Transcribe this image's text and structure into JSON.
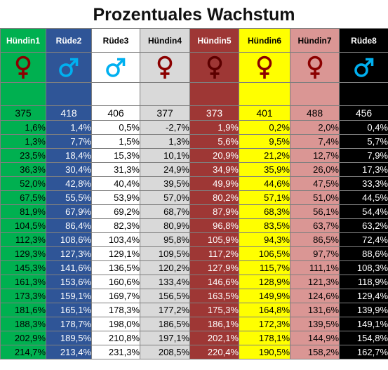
{
  "title": "Prozentuales Wachstum",
  "columns": [
    {
      "name": "Hündin1",
      "symbol": "female-symbol",
      "count": "375",
      "bg": "#00b050",
      "fg": "#000000",
      "sym": "#8b0000",
      "hfg": "#ffffff",
      "values": [
        "1,6%",
        "1,3%",
        "23,5%",
        "36,3%",
        "52,0%",
        "67,5%",
        "81,9%",
        "104,5%",
        "112,3%",
        "129,3%",
        "145,3%",
        "161,3%",
        "173,3%",
        "181,6%",
        "188,3%",
        "202,9%",
        "214,7%"
      ]
    },
    {
      "name": "Rüde2",
      "symbol": "male-symbol",
      "count": "418",
      "bg": "#2f5597",
      "fg": "#ffffff",
      "sym": "#00b0f0",
      "hfg": "#ffffff",
      "values": [
        "1,4%",
        "7,7%",
        "18,4%",
        "30,4%",
        "42,8%",
        "55,5%",
        "67,9%",
        "86,4%",
        "108,6%",
        "127,3%",
        "141,6%",
        "153,6%",
        "159,1%",
        "165,1%",
        "178,7%",
        "189,5%",
        "213,4%"
      ]
    },
    {
      "name": "Rüde3",
      "symbol": "male-symbol",
      "count": "406",
      "bg": "#ffffff",
      "fg": "#000000",
      "sym": "#00b0f0",
      "hfg": "#000000",
      "values": [
        "0,5%",
        "1,5%",
        "15,3%",
        "31,3%",
        "40,4%",
        "53,9%",
        "69,2%",
        "82,3%",
        "103,4%",
        "129,1%",
        "136,5%",
        "160,6%",
        "169,7%",
        "178,3%",
        "198,0%",
        "210,8%",
        "231,3%"
      ]
    },
    {
      "name": "Hündin4",
      "symbol": "female-symbol",
      "count": "377",
      "bg": "#d9d9d9",
      "fg": "#000000",
      "sym": "#8b0000",
      "hfg": "#000000",
      "values": [
        "-2,7%",
        "1,3%",
        "10,1%",
        "24,9%",
        "39,5%",
        "57,0%",
        "68,7%",
        "80,9%",
        "95,8%",
        "109,5%",
        "120,2%",
        "133,4%",
        "156,5%",
        "177,2%",
        "186,5%",
        "197,1%",
        "208,5%"
      ]
    },
    {
      "name": "Hündin5",
      "symbol": "female-symbol",
      "count": "373",
      "bg": "#9e3735",
      "fg": "#ffffff",
      "sym": "#5c0000",
      "hfg": "#ffffff",
      "values": [
        "1,9%",
        "5,6%",
        "20,9%",
        "34,9%",
        "49,9%",
        "80,2%",
        "87,9%",
        "96,8%",
        "105,9%",
        "117,2%",
        "127,9%",
        "146,6%",
        "163,5%",
        "175,3%",
        "186,1%",
        "202,1%",
        "220,4%"
      ]
    },
    {
      "name": "Hündin6",
      "symbol": "female-symbol",
      "count": "401",
      "bg": "#ffff00",
      "fg": "#000000",
      "sym": "#8b0000",
      "hfg": "#000000",
      "values": [
        "0,2%",
        "9,5%",
        "21,2%",
        "35,9%",
        "44,6%",
        "57,1%",
        "68,3%",
        "83,5%",
        "94,3%",
        "106,5%",
        "115,7%",
        "128,9%",
        "149,9%",
        "164,8%",
        "172,3%",
        "178,1%",
        "190,5%"
      ]
    },
    {
      "name": "Hündin7",
      "symbol": "female-symbol",
      "count": "488",
      "bg": "#da9694",
      "fg": "#000000",
      "sym": "#8b0000",
      "hfg": "#000000",
      "values": [
        "2,0%",
        "7,4%",
        "12,7%",
        "26,0%",
        "47,5%",
        "51,0%",
        "56,1%",
        "63,7%",
        "86,5%",
        "97,7%",
        "111,1%",
        "121,3%",
        "124,6%",
        "131,6%",
        "139,5%",
        "144,9%",
        "158,2%"
      ]
    },
    {
      "name": "Rüde8",
      "symbol": "male-symbol",
      "count": "456",
      "bg": "#000000",
      "fg": "#ffffff",
      "sym": "#00b0f0",
      "hfg": "#ffffff",
      "values": [
        "0,4%",
        "5,7%",
        "7,9%",
        "17,3%",
        "33,3%",
        "44,5%",
        "54,4%",
        "63,2%",
        "72,4%",
        "88,6%",
        "108,3%",
        "118,9%",
        "129,4%",
        "139,9%",
        "149,1%",
        "154,8%",
        "162,7%"
      ]
    }
  ]
}
